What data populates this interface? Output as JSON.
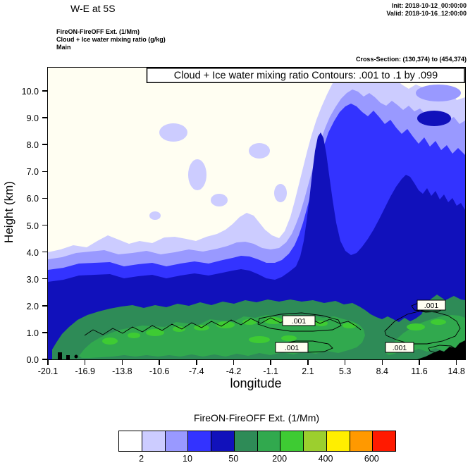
{
  "header": {
    "title": "W-E at 5S",
    "init_line": "Init: 2018-10-12_00:00:00",
    "valid_line": "Valid: 2018-10-16_12:00:00",
    "model_line1": "FireON-FireOFF Ext.  (1/Mm)",
    "model_line2": "Cloud + Ice water mixing ratio  (g/kg)",
    "model_line3": "Main",
    "cross_section": "Cross-Section: (130,374) to (454,374)"
  },
  "chart_data": {
    "type": "heatmap",
    "subtype": "filled-contour-vertical-cross-section",
    "title": "Cloud + Ice water mixing ratio Contours: .001 to .1 by .099",
    "xlabel": "longitude",
    "ylabel": "Height (km)",
    "x_ticks": [
      "-20.1",
      "-16.9",
      "-13.8",
      "-10.6",
      "-7.4",
      "-4.2",
      "-1.1",
      "2.1",
      "5.3",
      "8.4",
      "11.6",
      "14.8"
    ],
    "y_ticks": [
      "0.0",
      "1.0",
      "2.0",
      "3.0",
      "4.0",
      "5.0",
      "6.0",
      "7.0",
      "8.0",
      "9.0",
      "10.0"
    ],
    "xlim": [
      -20.1,
      14.8
    ],
    "ylim": [
      0.0,
      10.8
    ],
    "grid": false,
    "contour_field": "Cloud + Ice water mixing ratio (g/kg)",
    "contour_levels": [
      0.001,
      0.1
    ],
    "shaded_field": "FireON-FireOFF Ext. (1/Mm)",
    "shade_boundary_labels": [
      2,
      10,
      50,
      200,
      400,
      600
    ]
  },
  "annotations": {
    "labels": [
      ".001",
      ".001",
      ".001",
      ".001"
    ]
  },
  "colorbar": {
    "title": "FireON-FireOFF Ext.  (1/Mm)",
    "colors": [
      "#ffffff",
      "#ccccff",
      "#9999ff",
      "#3333ff",
      "#1111bb",
      "#2e8b57",
      "#31a94e",
      "#3ecb33",
      "#9ccf2e",
      "#ffee00",
      "#ff9900",
      "#ff1a00"
    ],
    "labels": [
      "2",
      "10",
      "50",
      "200",
      "400",
      "600"
    ]
  }
}
